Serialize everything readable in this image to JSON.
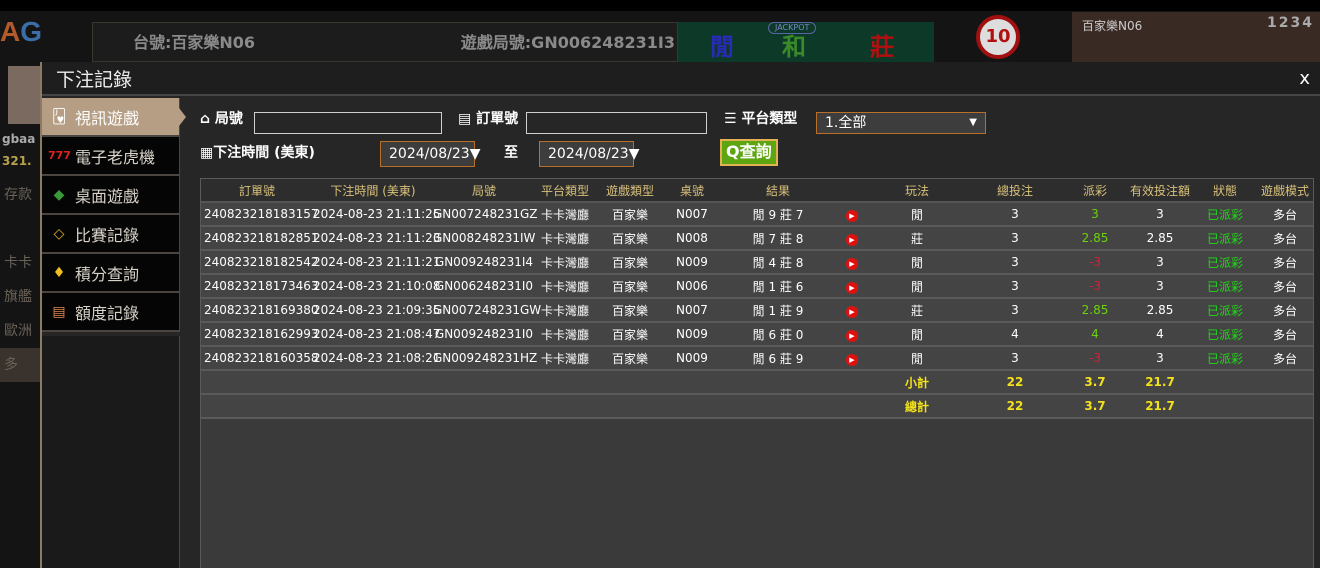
{
  "background": {
    "logo": {
      "a": "A",
      "g": "G"
    },
    "user": "gbaa",
    "balance": "321.",
    "left_items": [
      "存款",
      "卡卡",
      "旗艦",
      "歐洲",
      "多"
    ],
    "table_label": "台號:百家樂N06",
    "round_label": "遊戲局號:GN006248231I3",
    "bet_player": "閒",
    "bet_tie": "和",
    "bet_banker": "莊",
    "jackpot": "JACKPOT",
    "timer": "10",
    "video_table": "百家樂N06",
    "video_multi": "1234"
  },
  "modal": {
    "title": "下注記錄",
    "close": "x"
  },
  "sidebar": {
    "items": [
      {
        "label": "視訊遊戲",
        "icon": "cards-icon",
        "active": true
      },
      {
        "label": "電子老虎機",
        "icon": "slot-777-icon"
      },
      {
        "label": "桌面遊戲",
        "icon": "chips-icon"
      },
      {
        "label": "比賽記錄",
        "icon": "ticket-icon"
      },
      {
        "label": "積分查詢",
        "icon": "diamond-icon"
      },
      {
        "label": "額度記錄",
        "icon": "document-icon"
      }
    ]
  },
  "filters": {
    "round_label": "局號",
    "round_value": "",
    "order_label": "訂單號",
    "order_value": "",
    "platform_label": "平台類型",
    "platform_value": "1.全部",
    "time_label": "下注時間 (美東)",
    "date_from": "2024/08/23",
    "to_label": "至",
    "date_to": "2024/08/23",
    "query_label": "查詢"
  },
  "table": {
    "headers": [
      "訂單號",
      "下注時間 (美東)",
      "局號",
      "平台類型",
      "遊戲類型",
      "桌號",
      "結果",
      "",
      "玩法",
      "總投注",
      "派彩",
      "有效投注額",
      "狀態",
      "遊戲模式"
    ],
    "rows": [
      {
        "order": "240823218183157",
        "time": "2024-08-23 21:11:25",
        "round": "GN007248231GZ",
        "platform": "卡卡灣廳",
        "game": "百家樂",
        "table": "N007",
        "result": "閒 9 莊 7",
        "bet": "閒",
        "total": "3",
        "payout": "3",
        "payout_sign": "pos",
        "valid": "3",
        "status": "已派彩",
        "mode": "多台"
      },
      {
        "order": "240823218182851",
        "time": "2024-08-23 21:11:23",
        "round": "GN008248231IW",
        "platform": "卡卡灣廳",
        "game": "百家樂",
        "table": "N008",
        "result": "閒 7 莊 8",
        "bet": "莊",
        "total": "3",
        "payout": "2.85",
        "payout_sign": "pos",
        "valid": "2.85",
        "status": "已派彩",
        "mode": "多台"
      },
      {
        "order": "240823218182542",
        "time": "2024-08-23 21:11:21",
        "round": "GN009248231I4",
        "platform": "卡卡灣廳",
        "game": "百家樂",
        "table": "N009",
        "result": "閒 4 莊 8",
        "bet": "閒",
        "total": "3",
        "payout": "-3",
        "payout_sign": "neg",
        "valid": "3",
        "status": "已派彩",
        "mode": "多台"
      },
      {
        "order": "240823218173463",
        "time": "2024-08-23 21:10:08",
        "round": "GN006248231I0",
        "platform": "卡卡灣廳",
        "game": "百家樂",
        "table": "N006",
        "result": "閒 1 莊 6",
        "bet": "閒",
        "total": "3",
        "payout": "-3",
        "payout_sign": "neg",
        "valid": "3",
        "status": "已派彩",
        "mode": "多台"
      },
      {
        "order": "240823218169380",
        "time": "2024-08-23 21:09:35",
        "round": "GN007248231GW",
        "platform": "卡卡灣廳",
        "game": "百家樂",
        "table": "N007",
        "result": "閒 1 莊 9",
        "bet": "莊",
        "total": "3",
        "payout": "2.85",
        "payout_sign": "pos",
        "valid": "2.85",
        "status": "已派彩",
        "mode": "多台"
      },
      {
        "order": "240823218162993",
        "time": "2024-08-23 21:08:47",
        "round": "GN009248231I0",
        "platform": "卡卡灣廳",
        "game": "百家樂",
        "table": "N009",
        "result": "閒 6 莊 0",
        "bet": "閒",
        "total": "4",
        "payout": "4",
        "payout_sign": "pos",
        "valid": "4",
        "status": "已派彩",
        "mode": "多台"
      },
      {
        "order": "240823218160358",
        "time": "2024-08-23 21:08:21",
        "round": "GN009248231HZ",
        "platform": "卡卡灣廳",
        "game": "百家樂",
        "table": "N009",
        "result": "閒 6 莊 9",
        "bet": "閒",
        "total": "3",
        "payout": "-3",
        "payout_sign": "neg",
        "valid": "3",
        "status": "已派彩",
        "mode": "多台"
      }
    ],
    "subtotal": {
      "label": "小計",
      "total": "22",
      "payout": "3.7",
      "valid": "21.7"
    },
    "grand_total": {
      "label": "總計",
      "total": "22",
      "payout": "3.7",
      "valid": "21.7"
    }
  },
  "colors": {
    "accent": "#b59e84",
    "query_button": "#5ea512",
    "header_text": "#d8c07a",
    "payout_positive": "#6ad20c",
    "payout_negative": "#d0213c",
    "status": "#22d81a",
    "sum_text": "#f2e01a"
  }
}
